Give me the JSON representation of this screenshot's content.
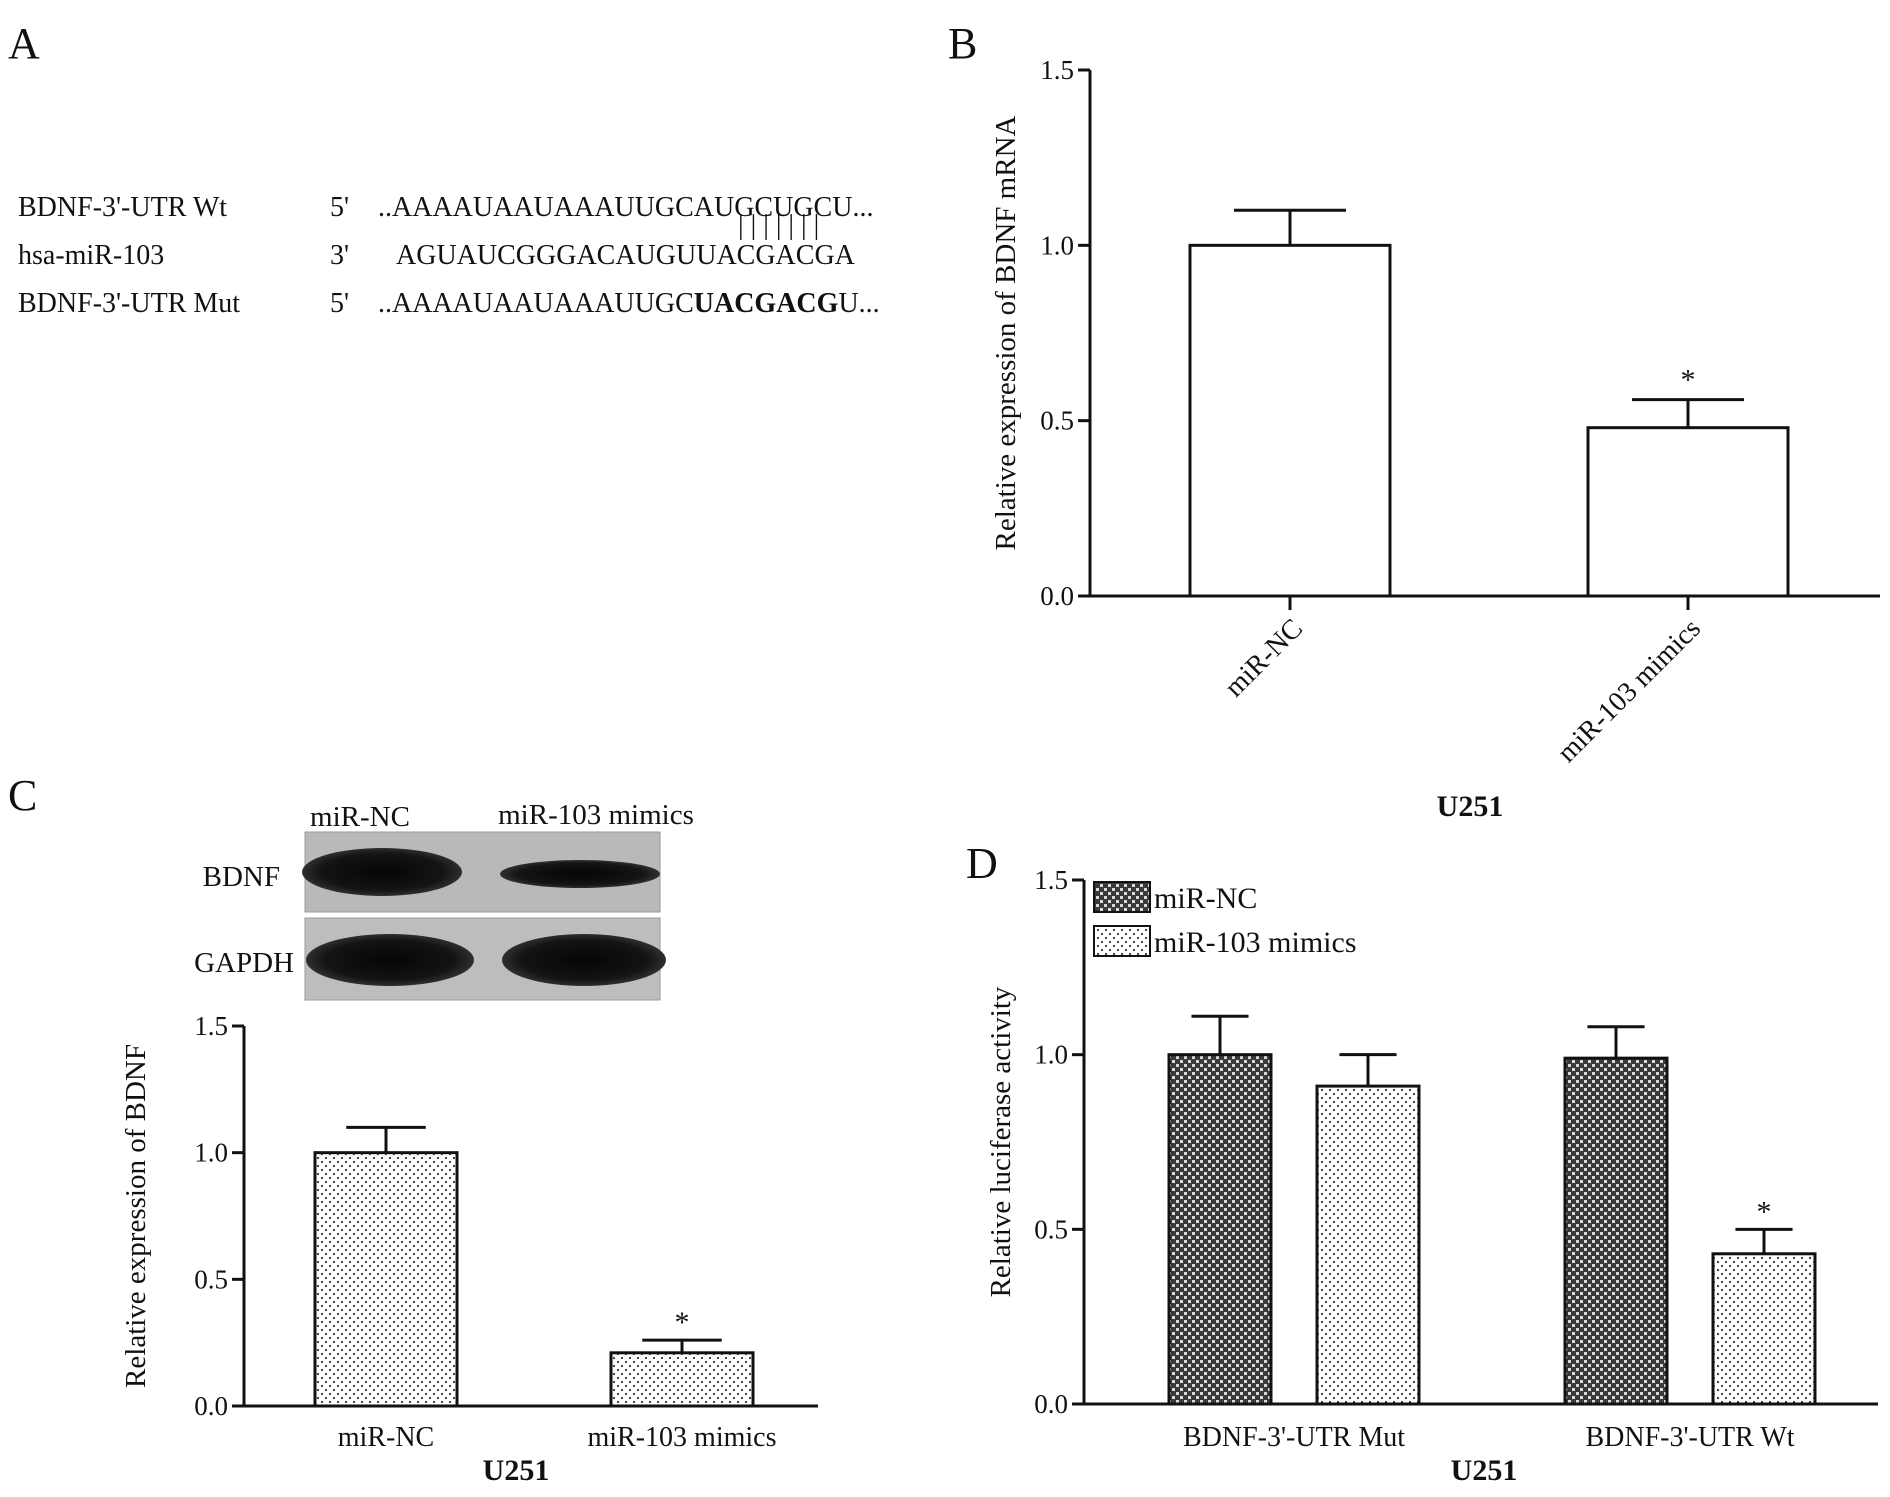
{
  "panels": {
    "A": {
      "letter": "A",
      "rows": [
        {
          "name": "BDNF-3'-UTR Wt",
          "end": "5'",
          "prefix": "..AAAAUAAUAAAUUGCAUGCUGCU...",
          "bold": "",
          "suffix": ""
        },
        {
          "name": "hsa-miR-103",
          "end": "3'",
          "prefix": "AGUAUCGGGACAUGUUACGACGA",
          "bold": "",
          "suffix": ""
        },
        {
          "name": "BDNF-3'-UTR Mut",
          "end": "5'",
          "prefix": "..AAAAUAAUAAAUUGC",
          "bold": "UACGACG",
          "suffix": "U..."
        }
      ],
      "pairing_marks": "| | | | | | |"
    },
    "B": {
      "letter": "B"
    },
    "C": {
      "letter": "C",
      "blot": {
        "lanes": [
          "miR-NC",
          "miR-103 mimics"
        ],
        "rows": [
          "BDNF",
          "GAPDH"
        ]
      }
    },
    "D": {
      "letter": "D"
    }
  },
  "chart_data": [
    {
      "panel": "B",
      "type": "bar",
      "categories": [
        "miR-NC",
        "miR-103 mimics"
      ],
      "values": [
        1.0,
        0.48
      ],
      "errors": [
        0.1,
        0.08
      ],
      "significance": [
        "",
        "*"
      ],
      "ylabel": "Relative expression of BDNF mRNA",
      "xlabel": "U251",
      "ylim": [
        0,
        1.5
      ],
      "yticks": [
        "0.0",
        "0.5",
        "1.0",
        "1.5"
      ],
      "fill": "white",
      "grid": false
    },
    {
      "panel": "C",
      "type": "bar",
      "categories": [
        "miR-NC",
        "miR-103 mimics"
      ],
      "values": [
        1.0,
        0.21
      ],
      "errors": [
        0.1,
        0.05
      ],
      "significance": [
        "",
        "*"
      ],
      "ylabel": "Relative expression of BDNF",
      "xlabel": "U251",
      "ylim": [
        0,
        1.5
      ],
      "yticks": [
        "0.0",
        "0.5",
        "1.0",
        "1.5"
      ],
      "fill": "dotted",
      "grid": false
    },
    {
      "panel": "D",
      "type": "bar",
      "categories": [
        "BDNF-3'-UTR Mut",
        "BDNF-3'-UTR Wt"
      ],
      "series": [
        {
          "name": "miR-NC",
          "values": [
            1.0,
            0.99
          ],
          "errors": [
            0.11,
            0.09
          ],
          "significance": [
            "",
            ""
          ],
          "fill": "crosshatch"
        },
        {
          "name": "miR-103 mimics",
          "values": [
            0.91,
            0.43
          ],
          "errors": [
            0.09,
            0.07
          ],
          "significance": [
            "",
            "*"
          ],
          "fill": "dotted"
        }
      ],
      "ylabel": "Relative luciferase activity",
      "xlabel": "U251",
      "ylim": [
        0,
        1.5
      ],
      "yticks": [
        "0.0",
        "0.5",
        "1.0",
        "1.5"
      ],
      "legend": "top-left",
      "grid": false
    }
  ]
}
